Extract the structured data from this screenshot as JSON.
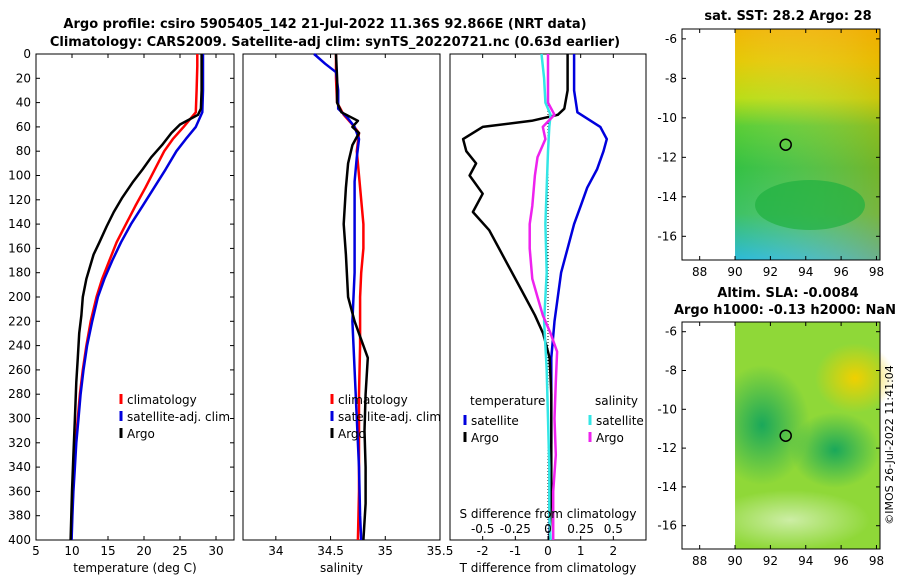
{
  "title": {
    "line1": "Argo profile: csiro 5905405_142 21-Jul-2022 11.36S 92.866E (NRT data)",
    "line2": "Climatology: CARS2009. Satellite-adj clim: synTS_20220721.nc (0.63d earlier)"
  },
  "copyright": "©IMOS 26-Jul-2022 11:41:04",
  "colors": {
    "climatology": "#ff0000",
    "satellite": "#0000dd",
    "argo": "#000000",
    "sat_salinity_diff": "#33e6e6",
    "argo_salinity_diff": "#ee22ee"
  },
  "chart_data": [
    {
      "type": "line",
      "id": "temperature",
      "xlabel": "temperature (deg C)",
      "ylabel": "",
      "xlim": [
        5,
        32.5
      ],
      "ylim": [
        400,
        0
      ],
      "xticks": [
        5,
        10,
        15,
        20,
        25,
        30
      ],
      "yticks": [
        0,
        20,
        40,
        60,
        80,
        100,
        120,
        140,
        160,
        180,
        200,
        220,
        240,
        260,
        280,
        300,
        320,
        340,
        360,
        380,
        400
      ],
      "legend": [
        "climatology",
        "satellite-adj. clim",
        "Argo"
      ],
      "series": [
        {
          "name": "climatology",
          "color": "#ff0000",
          "points": [
            [
              27.4,
              0
            ],
            [
              27.4,
              10
            ],
            [
              27.3,
              30
            ],
            [
              27.2,
              48
            ],
            [
              25.5,
              60
            ],
            [
              24.0,
              70
            ],
            [
              22.8,
              80
            ],
            [
              21.5,
              95
            ],
            [
              20.2,
              110
            ],
            [
              18.8,
              125
            ],
            [
              17.5,
              140
            ],
            [
              16.2,
              155
            ],
            [
              15.2,
              170
            ],
            [
              14.2,
              185
            ],
            [
              13.4,
              200
            ],
            [
              12.6,
              220
            ],
            [
              12.0,
              240
            ],
            [
              11.5,
              260
            ],
            [
              11.1,
              280
            ],
            [
              10.8,
              300
            ],
            [
              10.5,
              320
            ],
            [
              10.3,
              340
            ],
            [
              10.15,
              360
            ],
            [
              10.0,
              380
            ],
            [
              9.9,
              400
            ]
          ]
        },
        {
          "name": "satellite-adj. clim",
          "color": "#0000dd",
          "points": [
            [
              28.2,
              0
            ],
            [
              28.2,
              10
            ],
            [
              28.2,
              30
            ],
            [
              28.1,
              48
            ],
            [
              27.2,
              60
            ],
            [
              25.8,
              70
            ],
            [
              24.5,
              80
            ],
            [
              23.0,
              95
            ],
            [
              21.4,
              110
            ],
            [
              19.8,
              125
            ],
            [
              18.2,
              140
            ],
            [
              16.8,
              155
            ],
            [
              15.6,
              170
            ],
            [
              14.5,
              185
            ],
            [
              13.6,
              200
            ],
            [
              12.8,
              220
            ],
            [
              12.1,
              240
            ],
            [
              11.6,
              260
            ],
            [
              11.2,
              280
            ],
            [
              10.9,
              300
            ],
            [
              10.6,
              320
            ],
            [
              10.4,
              340
            ],
            [
              10.2,
              360
            ],
            [
              10.05,
              380
            ],
            [
              9.95,
              400
            ]
          ]
        },
        {
          "name": "Argo",
          "color": "#000000",
          "points": [
            [
              28.0,
              0
            ],
            [
              28.0,
              10
            ],
            [
              28.0,
              30
            ],
            [
              27.9,
              45
            ],
            [
              27.5,
              50
            ],
            [
              25.0,
              58
            ],
            [
              23.8,
              65
            ],
            [
              22.5,
              75
            ],
            [
              21.0,
              85
            ],
            [
              19.8,
              95
            ],
            [
              18.5,
              105
            ],
            [
              17.0,
              118
            ],
            [
              15.8,
              130
            ],
            [
              14.8,
              142
            ],
            [
              13.8,
              155
            ],
            [
              13.0,
              165
            ],
            [
              12.5,
              175
            ],
            [
              12.0,
              185
            ],
            [
              11.5,
              200
            ],
            [
              11.3,
              215
            ],
            [
              11.0,
              230
            ],
            [
              10.8,
              250
            ],
            [
              10.6,
              270
            ],
            [
              10.4,
              300
            ],
            [
              10.2,
              330
            ],
            [
              10.0,
              360
            ],
            [
              9.8,
              400
            ]
          ]
        }
      ]
    },
    {
      "type": "line",
      "id": "salinity",
      "xlabel": "salinity",
      "xlim": [
        33.7,
        35.5
      ],
      "ylim": [
        400,
        0
      ],
      "xticks": [
        34,
        34.5,
        35,
        35.5
      ],
      "xtick_labels": [
        "34",
        "34.5",
        "35",
        "35.5"
      ],
      "legend": [
        "climatology",
        "satellite-adj. clim",
        "Argo"
      ],
      "series": [
        {
          "name": "climatology",
          "color": "#ff0000",
          "points": [
            [
              34.55,
              0
            ],
            [
              34.55,
              20
            ],
            [
              34.56,
              40
            ],
            [
              34.62,
              50
            ],
            [
              34.7,
              58
            ],
            [
              34.76,
              65
            ],
            [
              34.74,
              80
            ],
            [
              34.76,
              100
            ],
            [
              34.78,
              120
            ],
            [
              34.8,
              140
            ],
            [
              34.8,
              160
            ],
            [
              34.78,
              180
            ],
            [
              34.77,
              200
            ],
            [
              34.77,
              240
            ],
            [
              34.76,
              280
            ],
            [
              34.76,
              320
            ],
            [
              34.76,
              360
            ],
            [
              34.75,
              400
            ]
          ]
        },
        {
          "name": "satellite-adj. clim",
          "color": "#0000dd",
          "points": [
            [
              34.35,
              0
            ],
            [
              34.45,
              8
            ],
            [
              34.55,
              15
            ],
            [
              34.57,
              30
            ],
            [
              34.57,
              45
            ],
            [
              34.65,
              52
            ],
            [
              34.72,
              60
            ],
            [
              34.76,
              70
            ],
            [
              34.74,
              85
            ],
            [
              34.72,
              105
            ],
            [
              34.72,
              140
            ],
            [
              34.72,
              180
            ],
            [
              34.7,
              220
            ],
            [
              34.72,
              260
            ],
            [
              34.74,
              300
            ],
            [
              34.76,
              340
            ],
            [
              34.77,
              380
            ],
            [
              34.78,
              400
            ]
          ]
        },
        {
          "name": "Argo",
          "color": "#000000",
          "points": [
            [
              34.55,
              0
            ],
            [
              34.56,
              20
            ],
            [
              34.56,
              40
            ],
            [
              34.6,
              48
            ],
            [
              34.75,
              55
            ],
            [
              34.7,
              60
            ],
            [
              34.76,
              65
            ],
            [
              34.7,
              75
            ],
            [
              34.66,
              90
            ],
            [
              34.64,
              110
            ],
            [
              34.62,
              140
            ],
            [
              34.64,
              165
            ],
            [
              34.66,
              200
            ],
            [
              34.72,
              220
            ],
            [
              34.84,
              250
            ],
            [
              34.82,
              280
            ],
            [
              34.81,
              310
            ],
            [
              34.82,
              340
            ],
            [
              34.82,
              370
            ],
            [
              34.8,
              400
            ]
          ]
        }
      ]
    },
    {
      "type": "line",
      "id": "differences",
      "xlabel": "T difference from climatology",
      "x2label": "S difference from climatology",
      "xlim": [
        -3,
        3
      ],
      "ylim": [
        400,
        0
      ],
      "xticks": [
        -2,
        -1,
        0,
        1,
        2
      ],
      "xtick_labels": [
        "-2",
        "-1",
        "0",
        "1",
        "2"
      ],
      "x2ticks": [
        -0.5,
        -0.25,
        0,
        0.25,
        0.5
      ],
      "x2tick_labels": [
        "-0.5",
        "-0.25",
        "0",
        "0.25",
        "0.5"
      ],
      "x2lim": [
        -0.75,
        0.75
      ],
      "legend_temperature_title": "temperature",
      "legend_salinity_title": "salinity",
      "legend": [
        "satellite",
        "Argo",
        "satellite",
        "Argo"
      ],
      "series": [
        {
          "name": "temperature satellite",
          "axis": "T",
          "color": "#0000dd",
          "points": [
            [
              0.8,
              0
            ],
            [
              0.8,
              10
            ],
            [
              0.8,
              30
            ],
            [
              0.9,
              48
            ],
            [
              1.6,
              60
            ],
            [
              1.8,
              70
            ],
            [
              1.7,
              80
            ],
            [
              1.5,
              95
            ],
            [
              1.2,
              110
            ],
            [
              1.0,
              125
            ],
            [
              0.8,
              140
            ],
            [
              0.6,
              160
            ],
            [
              0.4,
              180
            ],
            [
              0.3,
              200
            ],
            [
              0.2,
              220
            ],
            [
              0.1,
              250
            ],
            [
              0.1,
              280
            ],
            [
              0.1,
              320
            ],
            [
              0.05,
              360
            ],
            [
              0.05,
              400
            ]
          ]
        },
        {
          "name": "temperature Argo",
          "axis": "T",
          "color": "#000000",
          "points": [
            [
              0.6,
              0
            ],
            [
              0.6,
              30
            ],
            [
              0.5,
              45
            ],
            [
              0.3,
              50
            ],
            [
              -0.5,
              55
            ],
            [
              -2.0,
              60
            ],
            [
              -2.6,
              70
            ],
            [
              -2.5,
              80
            ],
            [
              -2.2,
              90
            ],
            [
              -2.4,
              100
            ],
            [
              -2.0,
              115
            ],
            [
              -2.3,
              130
            ],
            [
              -1.8,
              145
            ],
            [
              -1.5,
              160
            ],
            [
              -1.2,
              175
            ],
            [
              -0.8,
              195
            ],
            [
              -0.4,
              215
            ],
            [
              -0.15,
              230
            ],
            [
              0.05,
              250
            ],
            [
              0.1,
              280
            ],
            [
              0.1,
              320
            ],
            [
              0.1,
              360
            ],
            [
              0.05,
              400
            ]
          ]
        },
        {
          "name": "salinity satellite",
          "axis": "S",
          "color": "#33e6e6",
          "points": [
            [
              -0.05,
              0
            ],
            [
              -0.03,
              20
            ],
            [
              -0.02,
              40
            ],
            [
              0.02,
              50
            ],
            [
              0.01,
              60
            ],
            [
              0.0,
              80
            ],
            [
              -0.01,
              110
            ],
            [
              -0.02,
              140
            ],
            [
              -0.01,
              180
            ],
            [
              -0.03,
              220
            ],
            [
              -0.01,
              260
            ],
            [
              0.0,
              300
            ],
            [
              0.01,
              340
            ],
            [
              0.01,
              380
            ],
            [
              0.02,
              400
            ]
          ]
        },
        {
          "name": "salinity Argo",
          "axis": "S",
          "color": "#ee22ee",
          "points": [
            [
              0.0,
              0
            ],
            [
              0.0,
              20
            ],
            [
              0.0,
              40
            ],
            [
              0.05,
              50
            ],
            [
              -0.04,
              60
            ],
            [
              -0.02,
              70
            ],
            [
              -0.08,
              85
            ],
            [
              -0.1,
              100
            ],
            [
              -0.12,
              125
            ],
            [
              -0.14,
              140
            ],
            [
              -0.14,
              160
            ],
            [
              -0.12,
              185
            ],
            [
              -0.08,
              200
            ],
            [
              -0.04,
              215
            ],
            [
              0.02,
              230
            ],
            [
              0.07,
              245
            ],
            [
              0.06,
              270
            ],
            [
              0.05,
              300
            ],
            [
              0.06,
              330
            ],
            [
              0.04,
              360
            ],
            [
              0.04,
              400
            ]
          ]
        }
      ]
    },
    {
      "type": "heatmap",
      "id": "sst_map",
      "title": "sat. SST: 28.2 Argo: 28",
      "xlim": [
        87,
        98.2
      ],
      "ylim": [
        -17.2,
        -5.5
      ],
      "xticks": [
        88,
        90,
        92,
        94,
        96,
        98
      ],
      "yticks": [
        -6,
        -8,
        -10,
        -12,
        -14,
        -16
      ],
      "data_xlim": [
        90,
        98
      ],
      "marker": [
        92.866,
        -11.36
      ]
    },
    {
      "type": "heatmap",
      "id": "sla_map",
      "title_line1": "Altim. SLA: -0.0084",
      "title_line2": "Argo h1000: -0.13 h2000: NaN",
      "xlim": [
        87,
        98.2
      ],
      "ylim": [
        -17.2,
        -5.5
      ],
      "xticks": [
        88,
        90,
        92,
        94,
        96,
        98
      ],
      "yticks": [
        -6,
        -8,
        -10,
        -12,
        -14,
        -16
      ],
      "data_xlim": [
        90,
        98
      ],
      "marker": [
        92.866,
        -11.36
      ]
    }
  ]
}
